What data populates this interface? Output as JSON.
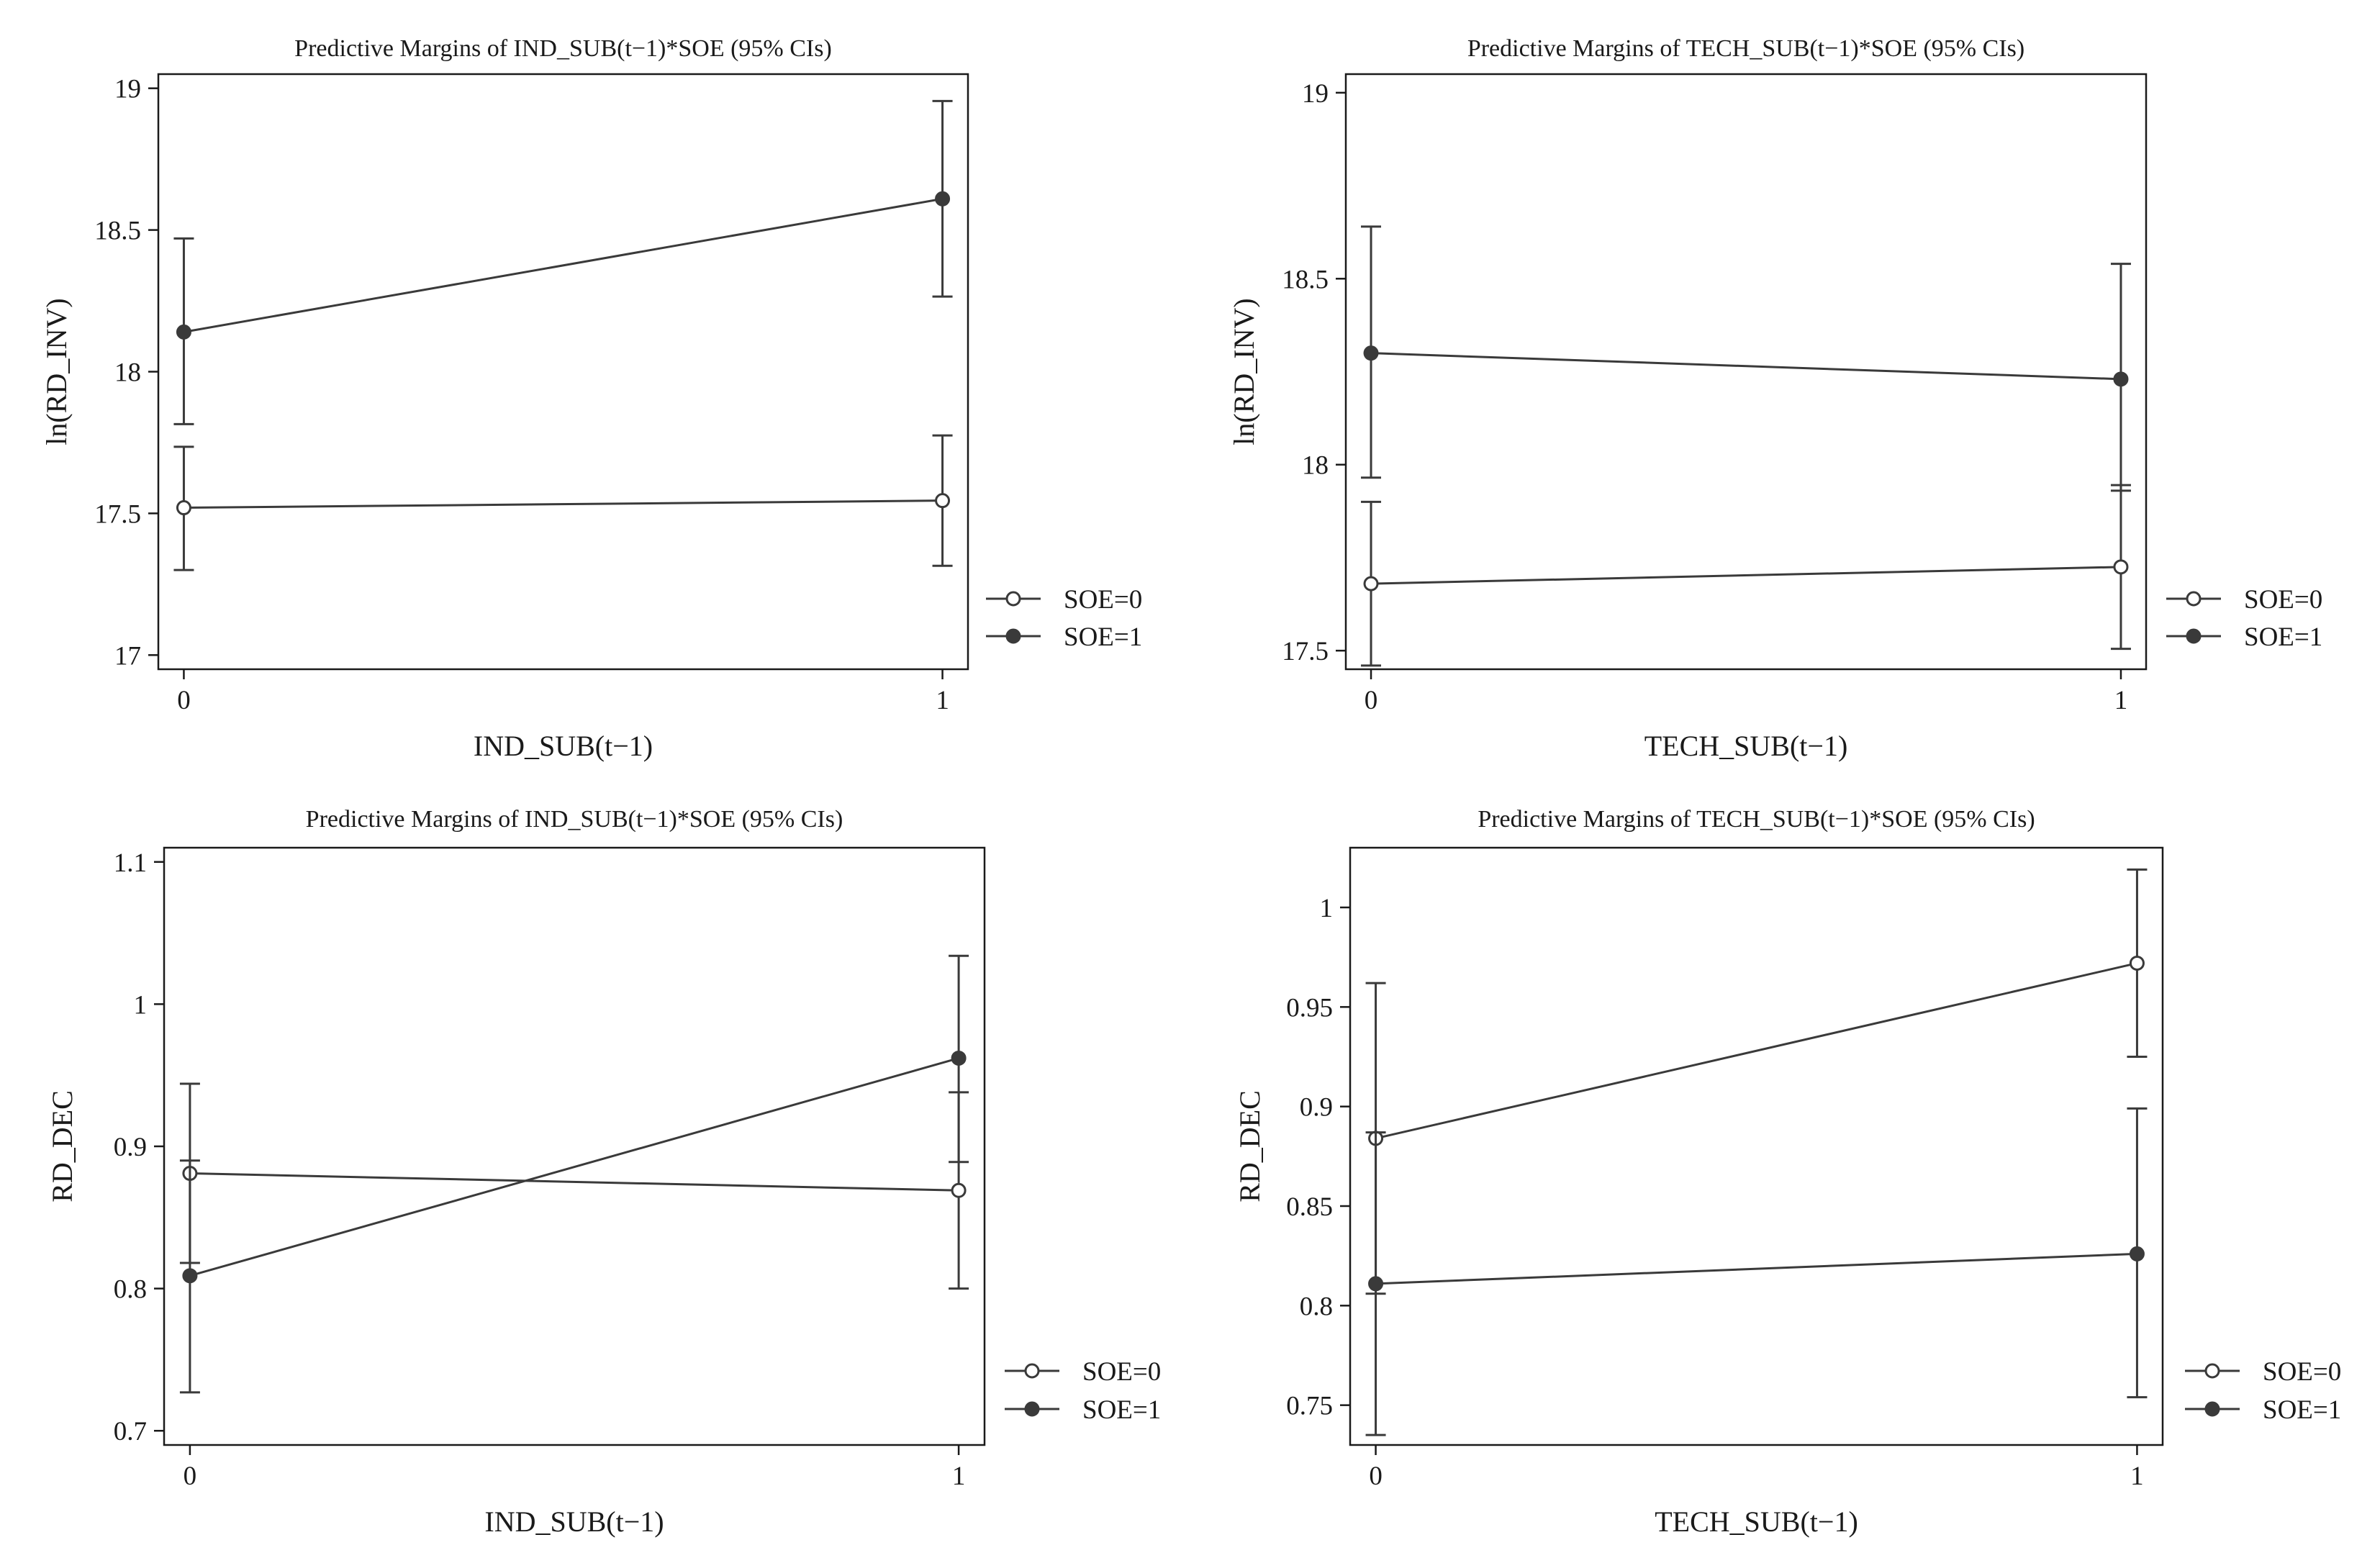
{
  "chart_data": [
    {
      "type": "line",
      "title": "Predictive Margins of IND_SUB(t−1)*SOE (95% CIs)",
      "xlabel": "IND_SUB(t−1)",
      "ylabel": "ln(RD_INV)",
      "x": [
        0,
        1
      ],
      "x_tick_labels": [
        "0",
        "1"
      ],
      "ylim": [
        16.95,
        19.05
      ],
      "y_ticks": [
        17,
        17.5,
        18,
        18.5,
        19
      ],
      "y_tick_labels": [
        "17",
        "17.5",
        "18",
        "18.5",
        "19"
      ],
      "grid": false,
      "legend_position": "right",
      "series": [
        {
          "name": "SOE=0",
          "marker": "hollow-circle",
          "values": [
            17.52,
            17.545
          ],
          "ci_low": [
            17.3,
            17.315
          ],
          "ci_high": [
            17.735,
            17.775
          ]
        },
        {
          "name": "SOE=1",
          "marker": "filled-circle",
          "values": [
            18.14,
            18.61
          ],
          "ci_low": [
            17.815,
            18.265
          ],
          "ci_high": [
            18.47,
            18.955
          ]
        }
      ]
    },
    {
      "type": "line",
      "title": "Predictive Margins of TECH_SUB(t−1)*SOE (95% CIs)",
      "xlabel": "TECH_SUB(t−1)",
      "ylabel": "ln(RD_INV)",
      "x": [
        0,
        1
      ],
      "x_tick_labels": [
        "0",
        "1"
      ],
      "ylim": [
        17.45,
        19.05
      ],
      "y_ticks": [
        17.5,
        18,
        18.5,
        19
      ],
      "y_tick_labels": [
        "17.5",
        "18",
        "18.5",
        "19"
      ],
      "grid": false,
      "legend_position": "right",
      "series": [
        {
          "name": "SOE=0",
          "marker": "hollow-circle",
          "values": [
            17.68,
            17.725
          ],
          "ci_low": [
            17.46,
            17.505
          ],
          "ci_high": [
            17.9,
            17.945
          ]
        },
        {
          "name": "SOE=1",
          "marker": "filled-circle",
          "values": [
            18.3,
            18.23
          ],
          "ci_low": [
            17.965,
            17.93
          ],
          "ci_high": [
            18.64,
            18.54
          ]
        }
      ]
    },
    {
      "type": "line",
      "title": "Predictive Margins of IND_SUB(t−1)*SOE (95% CIs)",
      "xlabel": "IND_SUB(t−1)",
      "ylabel": "RD_DEC",
      "x": [
        0,
        1
      ],
      "x_tick_labels": [
        "0",
        "1"
      ],
      "ylim": [
        0.69,
        1.11
      ],
      "y_ticks": [
        0.7,
        0.8,
        0.9,
        1,
        1.1
      ],
      "y_tick_labels": [
        "0.7",
        "0.8",
        "0.9",
        "1",
        "1.1"
      ],
      "grid": false,
      "legend_position": "right",
      "series": [
        {
          "name": "SOE=0",
          "marker": "hollow-circle",
          "values": [
            0.881,
            0.869
          ],
          "ci_low": [
            0.818,
            0.8
          ],
          "ci_high": [
            0.944,
            0.938
          ]
        },
        {
          "name": "SOE=1",
          "marker": "filled-circle",
          "values": [
            0.809,
            0.962
          ],
          "ci_low": [
            0.727,
            0.889
          ],
          "ci_high": [
            0.89,
            1.034
          ]
        }
      ]
    },
    {
      "type": "line",
      "title": "Predictive Margins of TECH_SUB(t−1)*SOE (95% CIs)",
      "xlabel": "TECH_SUB(t−1)",
      "ylabel": "RD_DEC",
      "x": [
        0,
        1
      ],
      "x_tick_labels": [
        "0",
        "1"
      ],
      "ylim": [
        0.73,
        1.03
      ],
      "y_ticks": [
        0.75,
        0.8,
        0.85,
        0.9,
        0.95,
        1
      ],
      "y_tick_labels": [
        "0.75",
        "0.8",
        "0.85",
        "0.9",
        "0.95",
        "1"
      ],
      "grid": false,
      "legend_position": "right",
      "series": [
        {
          "name": "SOE=0",
          "marker": "hollow-circle",
          "values": [
            0.884,
            0.972
          ],
          "ci_low": [
            0.806,
            0.925
          ],
          "ci_high": [
            0.962,
            1.019
          ]
        },
        {
          "name": "SOE=1",
          "marker": "filled-circle",
          "values": [
            0.811,
            0.826
          ],
          "ci_low": [
            0.735,
            0.754
          ],
          "ci_high": [
            0.887,
            0.899
          ]
        }
      ]
    }
  ],
  "colors": {
    "line": "#3a3a3a",
    "axis": "#1a1a1a",
    "background": "#ffffff"
  }
}
